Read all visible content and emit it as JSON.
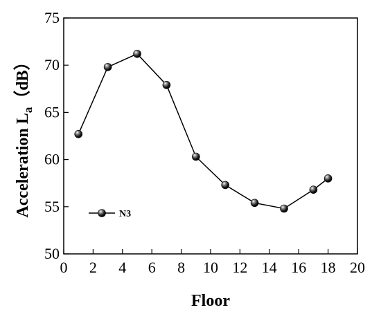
{
  "chart_data": {
    "type": "line",
    "xlabel": "Floor",
    "ylabel": {
      "main": "Acceleration L",
      "subscript": "a",
      "unit": "（dB）"
    },
    "xlim": [
      0,
      20
    ],
    "ylim": [
      50,
      75
    ],
    "xticks": [
      0,
      2,
      4,
      6,
      8,
      10,
      12,
      14,
      16,
      18,
      20
    ],
    "yticks": [
      50,
      55,
      60,
      65,
      70,
      75
    ],
    "grid": false,
    "legend_position": "lower-left",
    "series": [
      {
        "name": "N3",
        "color": "#000000",
        "marker": "sphere",
        "x": [
          1,
          3,
          5,
          7,
          9,
          11,
          13,
          15,
          17,
          18
        ],
        "y": [
          62.7,
          69.8,
          71.2,
          67.9,
          60.3,
          57.3,
          55.4,
          54.8,
          56.8,
          58.0
        ]
      }
    ]
  }
}
